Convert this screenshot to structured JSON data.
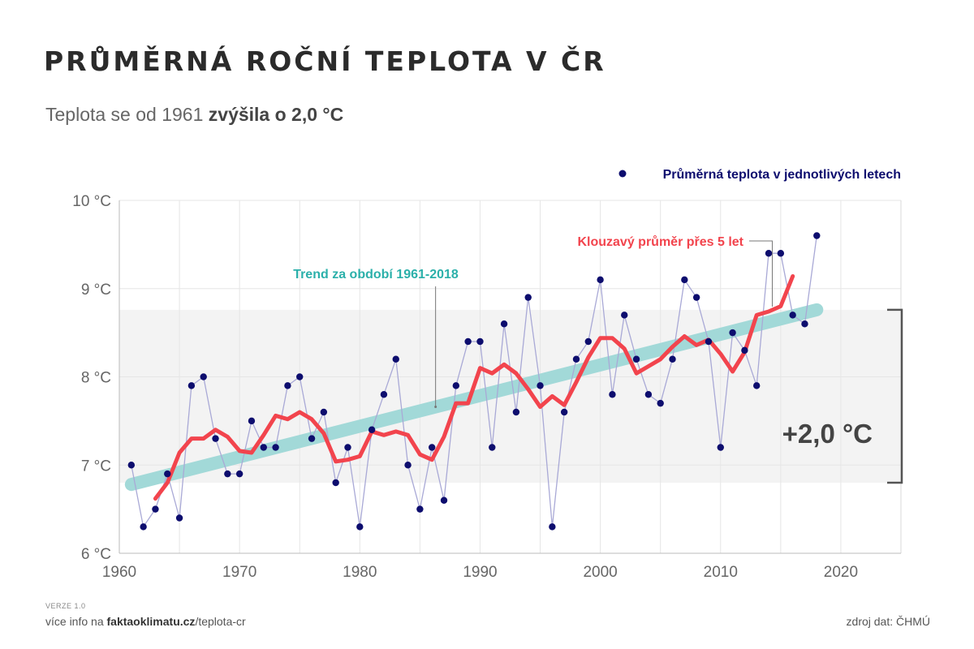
{
  "header": {
    "title": "PRŮMĚRNÁ ROČNÍ TEPLOTA V ČR",
    "subtitle_prefix": "Teplota se od 1961",
    "subtitle_bold": "zvýšila o 2,0 °C"
  },
  "footer": {
    "version": "VERZE 1.0",
    "more_prefix": "více info na",
    "more_site": "faktaoklimatu.cz",
    "more_path": "/teplota-cr",
    "source": "zdroj dat: ČHMÚ"
  },
  "colors": {
    "annual": "#0d0d6e",
    "annual_line": "#a9a9d6",
    "moving_avg": "#f2444d",
    "trend": "#a2d9d8",
    "trend_label": "#2bb0aa",
    "band": "#f3f3f3",
    "grid": "#e6e6e6",
    "bracket": "#555555"
  },
  "chart_data": {
    "type": "line",
    "title": "PRŮMĚRNÁ ROČNÍ TEPLOTA V ČR",
    "xlim": [
      1960,
      2025
    ],
    "ylim": [
      6,
      10
    ],
    "x_ticks": [
      1960,
      1970,
      1980,
      1990,
      2000,
      2010,
      2020
    ],
    "x_tick_labels": [
      "1960",
      "1970",
      "1980",
      "1990",
      "2000",
      "2010",
      "2020"
    ],
    "y_ticks": [
      6,
      7,
      8,
      9,
      10
    ],
    "y_tick_labels": [
      "6 °C",
      "7 °C",
      "8 °C",
      "9 °C",
      "10 °C"
    ],
    "grid": true,
    "legend_position": "top-right",
    "series": [
      {
        "name": "Průměrná teplota v jednotlivých letech",
        "style": "points",
        "x": [
          1961,
          1962,
          1963,
          1964,
          1965,
          1966,
          1967,
          1968,
          1969,
          1970,
          1971,
          1972,
          1973,
          1974,
          1975,
          1976,
          1977,
          1978,
          1979,
          1980,
          1981,
          1982,
          1983,
          1984,
          1985,
          1986,
          1987,
          1988,
          1989,
          1990,
          1991,
          1992,
          1993,
          1994,
          1995,
          1996,
          1997,
          1998,
          1999,
          2000,
          2001,
          2002,
          2003,
          2004,
          2005,
          2006,
          2007,
          2008,
          2009,
          2010,
          2011,
          2012,
          2013,
          2014,
          2015,
          2016,
          2017,
          2018
        ],
        "values": [
          7.0,
          6.3,
          6.5,
          6.9,
          6.4,
          7.9,
          8.0,
          7.3,
          6.9,
          6.9,
          7.5,
          7.2,
          7.2,
          7.9,
          8.0,
          7.3,
          7.6,
          6.8,
          7.2,
          6.3,
          7.4,
          7.8,
          8.2,
          7.0,
          6.5,
          7.2,
          6.6,
          7.9,
          8.4,
          8.4,
          7.2,
          8.6,
          7.6,
          8.9,
          7.9,
          6.3,
          7.6,
          8.2,
          8.4,
          9.1,
          7.8,
          8.7,
          8.2,
          7.8,
          7.7,
          8.2,
          9.1,
          8.9,
          8.4,
          7.2,
          8.5,
          8.3,
          7.9,
          9.4,
          9.4,
          8.7,
          8.6,
          9.6
        ]
      },
      {
        "name": "Klouzavý průměr přes 5 let",
        "style": "line",
        "x": [
          1963,
          1964,
          1965,
          1966,
          1967,
          1968,
          1969,
          1970,
          1971,
          1972,
          1973,
          1974,
          1975,
          1976,
          1977,
          1978,
          1979,
          1980,
          1981,
          1982,
          1983,
          1984,
          1985,
          1986,
          1987,
          1988,
          1989,
          1990,
          1991,
          1992,
          1993,
          1994,
          1995,
          1996,
          1997,
          1998,
          1999,
          2000,
          2001,
          2002,
          2003,
          2004,
          2005,
          2006,
          2007,
          2008,
          2009,
          2010,
          2011,
          2012,
          2013,
          2014,
          2015,
          2016
        ],
        "values": [
          6.62,
          6.8,
          7.14,
          7.3,
          7.3,
          7.4,
          7.32,
          7.16,
          7.14,
          7.34,
          7.56,
          7.52,
          7.6,
          7.52,
          7.36,
          7.04,
          7.06,
          7.1,
          7.38,
          7.34,
          7.38,
          7.34,
          7.12,
          7.06,
          7.32,
          7.7,
          7.7,
          8.1,
          8.04,
          8.14,
          8.04,
          7.86,
          7.66,
          7.78,
          7.68,
          7.94,
          8.22,
          8.44,
          8.44,
          8.32,
          8.04,
          8.12,
          8.2,
          8.34,
          8.46,
          8.36,
          8.42,
          8.26,
          8.06,
          8.28,
          8.7,
          8.74,
          8.8,
          9.14
        ]
      },
      {
        "name": "Trend za období 1961-2018",
        "style": "trend",
        "x": [
          1961,
          2018
        ],
        "values": [
          6.78,
          8.76
        ]
      }
    ],
    "annotations": {
      "moving_avg_label": "Klouzavý průměr přes 5 let",
      "trend_label": "Trend za období 1961-2018",
      "increase_label": "+2,0 °C",
      "increase_range": [
        6.8,
        8.76
      ]
    }
  }
}
